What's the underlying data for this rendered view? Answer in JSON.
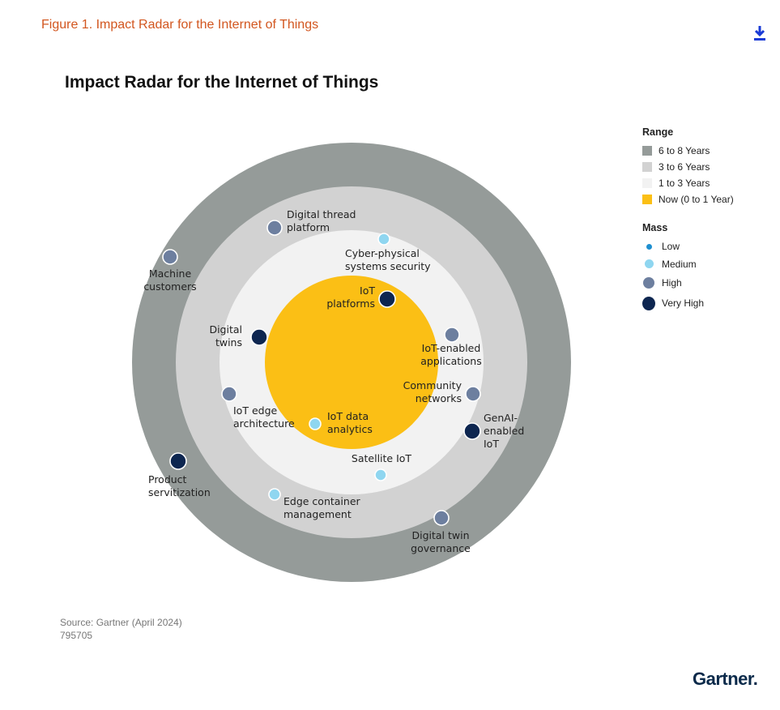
{
  "figure_title": "Figure 1. Impact Radar for the Internet of Things",
  "chart_title": "Impact Radar for the Internet of Things",
  "legend": {
    "range_title": "Range",
    "range": [
      {
        "label": "6 to 8 Years",
        "color": "#959b99"
      },
      {
        "label": "3 to 6 Years",
        "color": "#d2d2d2"
      },
      {
        "label": "1 to 3 Years",
        "color": "#f2f2f2"
      },
      {
        "label": "Now (0 to 1 Year)",
        "color": "#fbbf15"
      }
    ],
    "mass_title": "Mass",
    "mass": [
      {
        "label": "Low",
        "color": "#1e8fd0"
      },
      {
        "label": "Medium",
        "color": "#8fd6f0"
      },
      {
        "label": "High",
        "color": "#6d7f9f"
      },
      {
        "label": "Very High",
        "color": "#0d2650"
      }
    ]
  },
  "items": [
    {
      "name": "Digital thread platform",
      "label_lines": [
        "Digital thread",
        "platform"
      ],
      "mass": "High"
    },
    {
      "name": "Cyber-physical systems security",
      "label_lines": [
        "Cyber-physical",
        "systems security"
      ],
      "mass": "Medium"
    },
    {
      "name": "Machine customers",
      "label_lines": [
        "Machine",
        "customers"
      ],
      "mass": "High"
    },
    {
      "name": "IoT platforms",
      "label_lines": [
        "IoT",
        "platforms"
      ],
      "mass": "Very High"
    },
    {
      "name": "Digital twins",
      "label_lines": [
        "Digital",
        "twins"
      ],
      "mass": "Very High"
    },
    {
      "name": "IoT-enabled applications",
      "label_lines": [
        "IoT-enabled",
        "applications"
      ],
      "mass": "High"
    },
    {
      "name": "Community networks",
      "label_lines": [
        "Community",
        "networks"
      ],
      "mass": "High"
    },
    {
      "name": "IoT edge architecture",
      "label_lines": [
        "IoT edge",
        "architecture"
      ],
      "mass": "High"
    },
    {
      "name": "IoT data analytics",
      "label_lines": [
        "IoT data",
        "analytics"
      ],
      "mass": "Medium"
    },
    {
      "name": "GenAI-enabled IoT",
      "label_lines": [
        "GenAI-",
        "enabled",
        "IoT"
      ],
      "mass": "Very High"
    },
    {
      "name": "Product servitization",
      "label_lines": [
        "Product",
        "servitization"
      ],
      "mass": "Very High"
    },
    {
      "name": "Satellite IoT",
      "label_lines": [
        "Satellite IoT"
      ],
      "mass": "Medium"
    },
    {
      "name": "Edge container management",
      "label_lines": [
        "Edge container",
        "management"
      ],
      "mass": "Medium"
    },
    {
      "name": "Digital twin governance",
      "label_lines": [
        "Digital twin",
        "governance"
      ],
      "mass": "High"
    }
  ],
  "source": "Source: Gartner (April 2024)",
  "doc_id": "795705",
  "logo_text": "Gartner."
}
